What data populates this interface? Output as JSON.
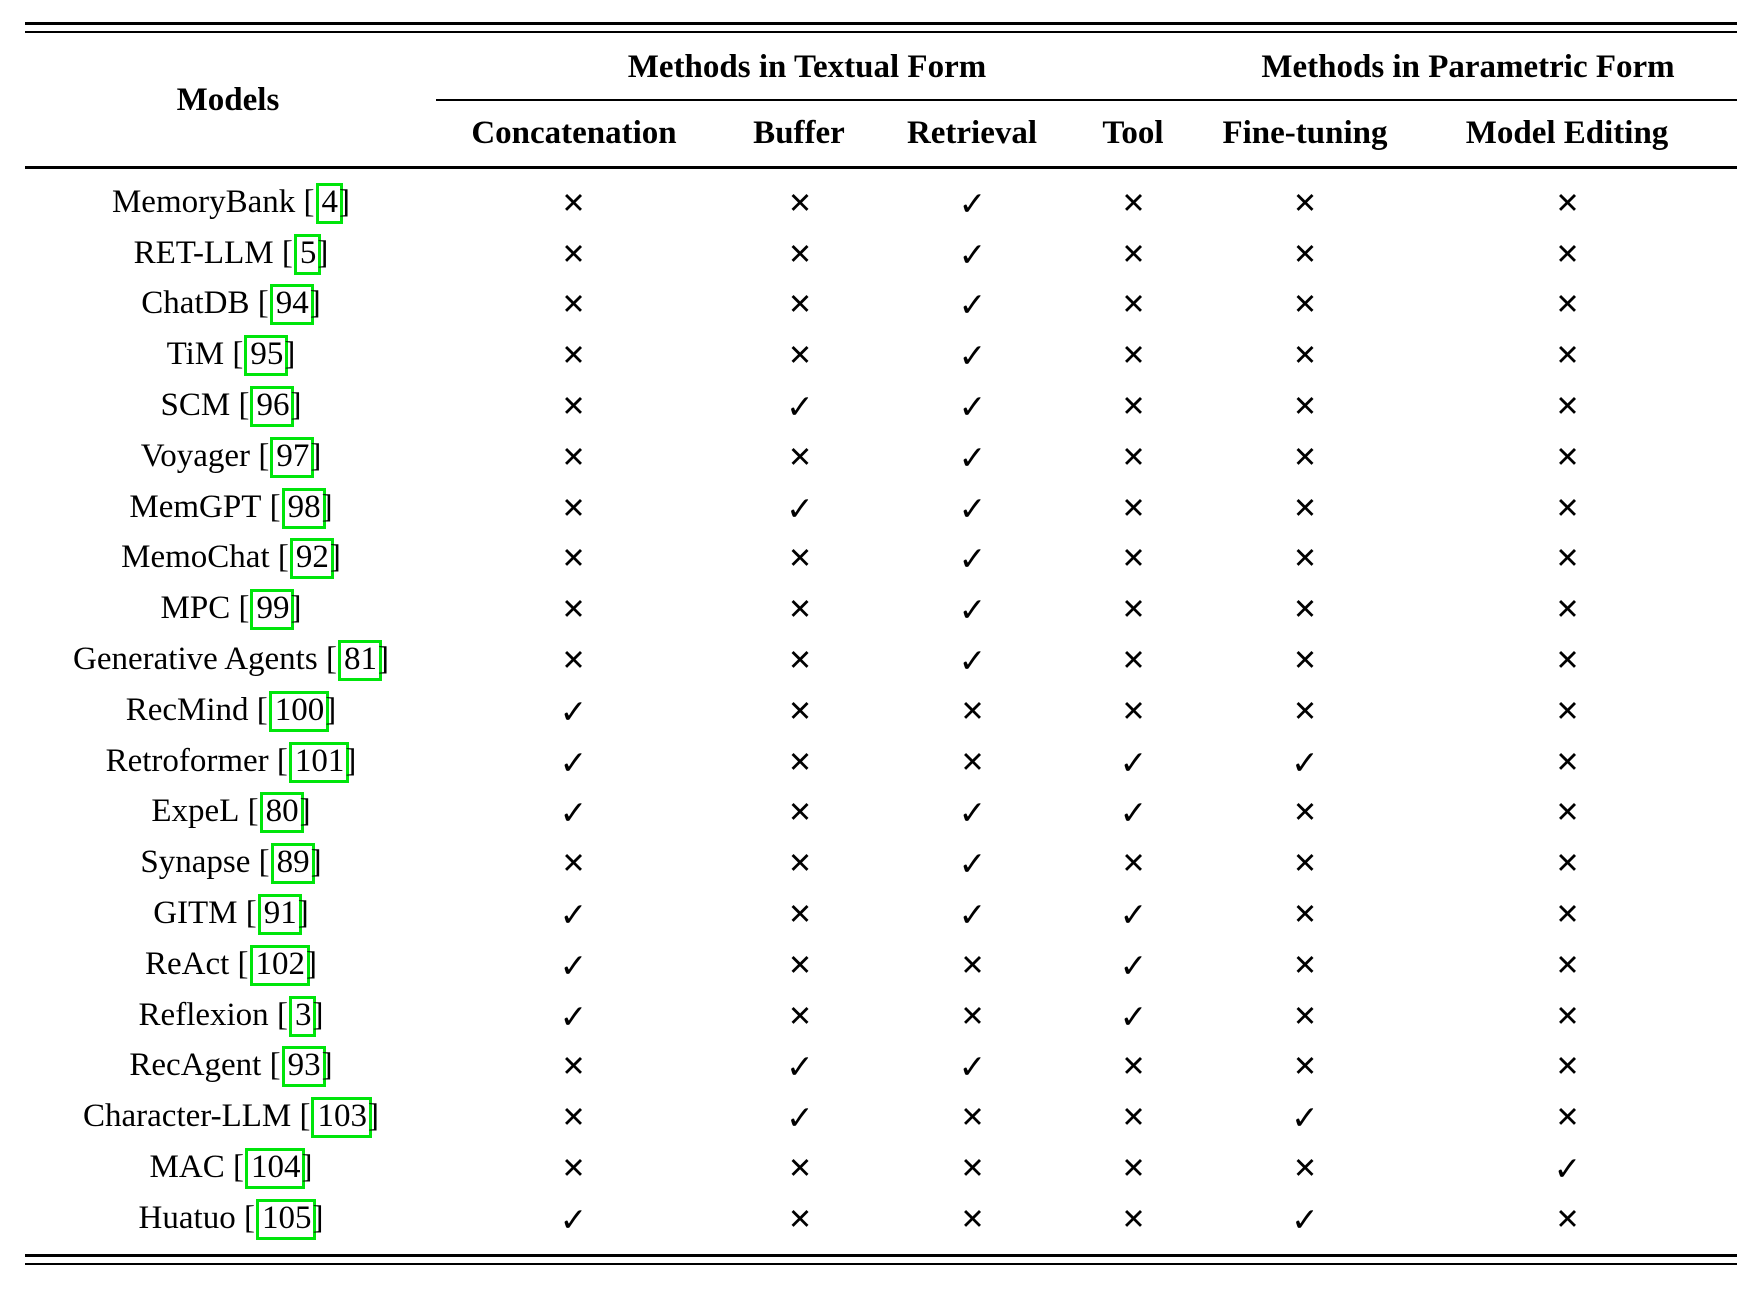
{
  "table": {
    "models_header": "Models",
    "span_headers": {
      "textual": "Methods in Textual Form",
      "parametric": "Methods in Parametric Form"
    },
    "method_columns": [
      "Concatenation",
      "Buffer",
      "Retrieval",
      "Tool",
      "Fine-tuning",
      "Model Editing"
    ],
    "marks": {
      "yes": "✓",
      "no": "✕"
    },
    "citation_box_color": "#00e50b",
    "rows": [
      {
        "name": "MemoryBank",
        "cite": "4",
        "values": [
          false,
          false,
          true,
          false,
          false,
          false
        ]
      },
      {
        "name": "RET-LLM",
        "cite": "5",
        "values": [
          false,
          false,
          true,
          false,
          false,
          false
        ]
      },
      {
        "name": "ChatDB",
        "cite": "94",
        "values": [
          false,
          false,
          true,
          false,
          false,
          false
        ]
      },
      {
        "name": "TiM",
        "cite": "95",
        "values": [
          false,
          false,
          true,
          false,
          false,
          false
        ]
      },
      {
        "name": "SCM",
        "cite": "96",
        "values": [
          false,
          true,
          true,
          false,
          false,
          false
        ]
      },
      {
        "name": "Voyager",
        "cite": "97",
        "values": [
          false,
          false,
          true,
          false,
          false,
          false
        ]
      },
      {
        "name": "MemGPT",
        "cite": "98",
        "values": [
          false,
          true,
          true,
          false,
          false,
          false
        ]
      },
      {
        "name": "MemoChat",
        "cite": "92",
        "values": [
          false,
          false,
          true,
          false,
          false,
          false
        ]
      },
      {
        "name": "MPC",
        "cite": "99",
        "values": [
          false,
          false,
          true,
          false,
          false,
          false
        ]
      },
      {
        "name": "Generative Agents",
        "cite": "81",
        "values": [
          false,
          false,
          true,
          false,
          false,
          false
        ]
      },
      {
        "name": "RecMind",
        "cite": "100",
        "values": [
          true,
          false,
          false,
          false,
          false,
          false
        ]
      },
      {
        "name": "Retroformer",
        "cite": "101",
        "values": [
          true,
          false,
          false,
          true,
          true,
          false
        ]
      },
      {
        "name": "ExpeL",
        "cite": "80",
        "values": [
          true,
          false,
          true,
          true,
          false,
          false
        ]
      },
      {
        "name": "Synapse",
        "cite": "89",
        "values": [
          false,
          false,
          true,
          false,
          false,
          false
        ]
      },
      {
        "name": "GITM",
        "cite": "91",
        "values": [
          true,
          false,
          true,
          true,
          false,
          false
        ]
      },
      {
        "name": "ReAct",
        "cite": "102",
        "values": [
          true,
          false,
          false,
          true,
          false,
          false
        ]
      },
      {
        "name": "Reflexion",
        "cite": "3",
        "values": [
          true,
          false,
          false,
          true,
          false,
          false
        ]
      },
      {
        "name": "RecAgent",
        "cite": "93",
        "values": [
          false,
          true,
          true,
          false,
          false,
          false
        ]
      },
      {
        "name": "Character-LLM",
        "cite": "103",
        "values": [
          false,
          true,
          false,
          false,
          true,
          false
        ]
      },
      {
        "name": "MAC",
        "cite": "104",
        "values": [
          false,
          false,
          false,
          false,
          false,
          true
        ]
      },
      {
        "name": "Huatuo",
        "cite": "105",
        "values": [
          true,
          false,
          false,
          false,
          true,
          false
        ]
      }
    ]
  }
}
